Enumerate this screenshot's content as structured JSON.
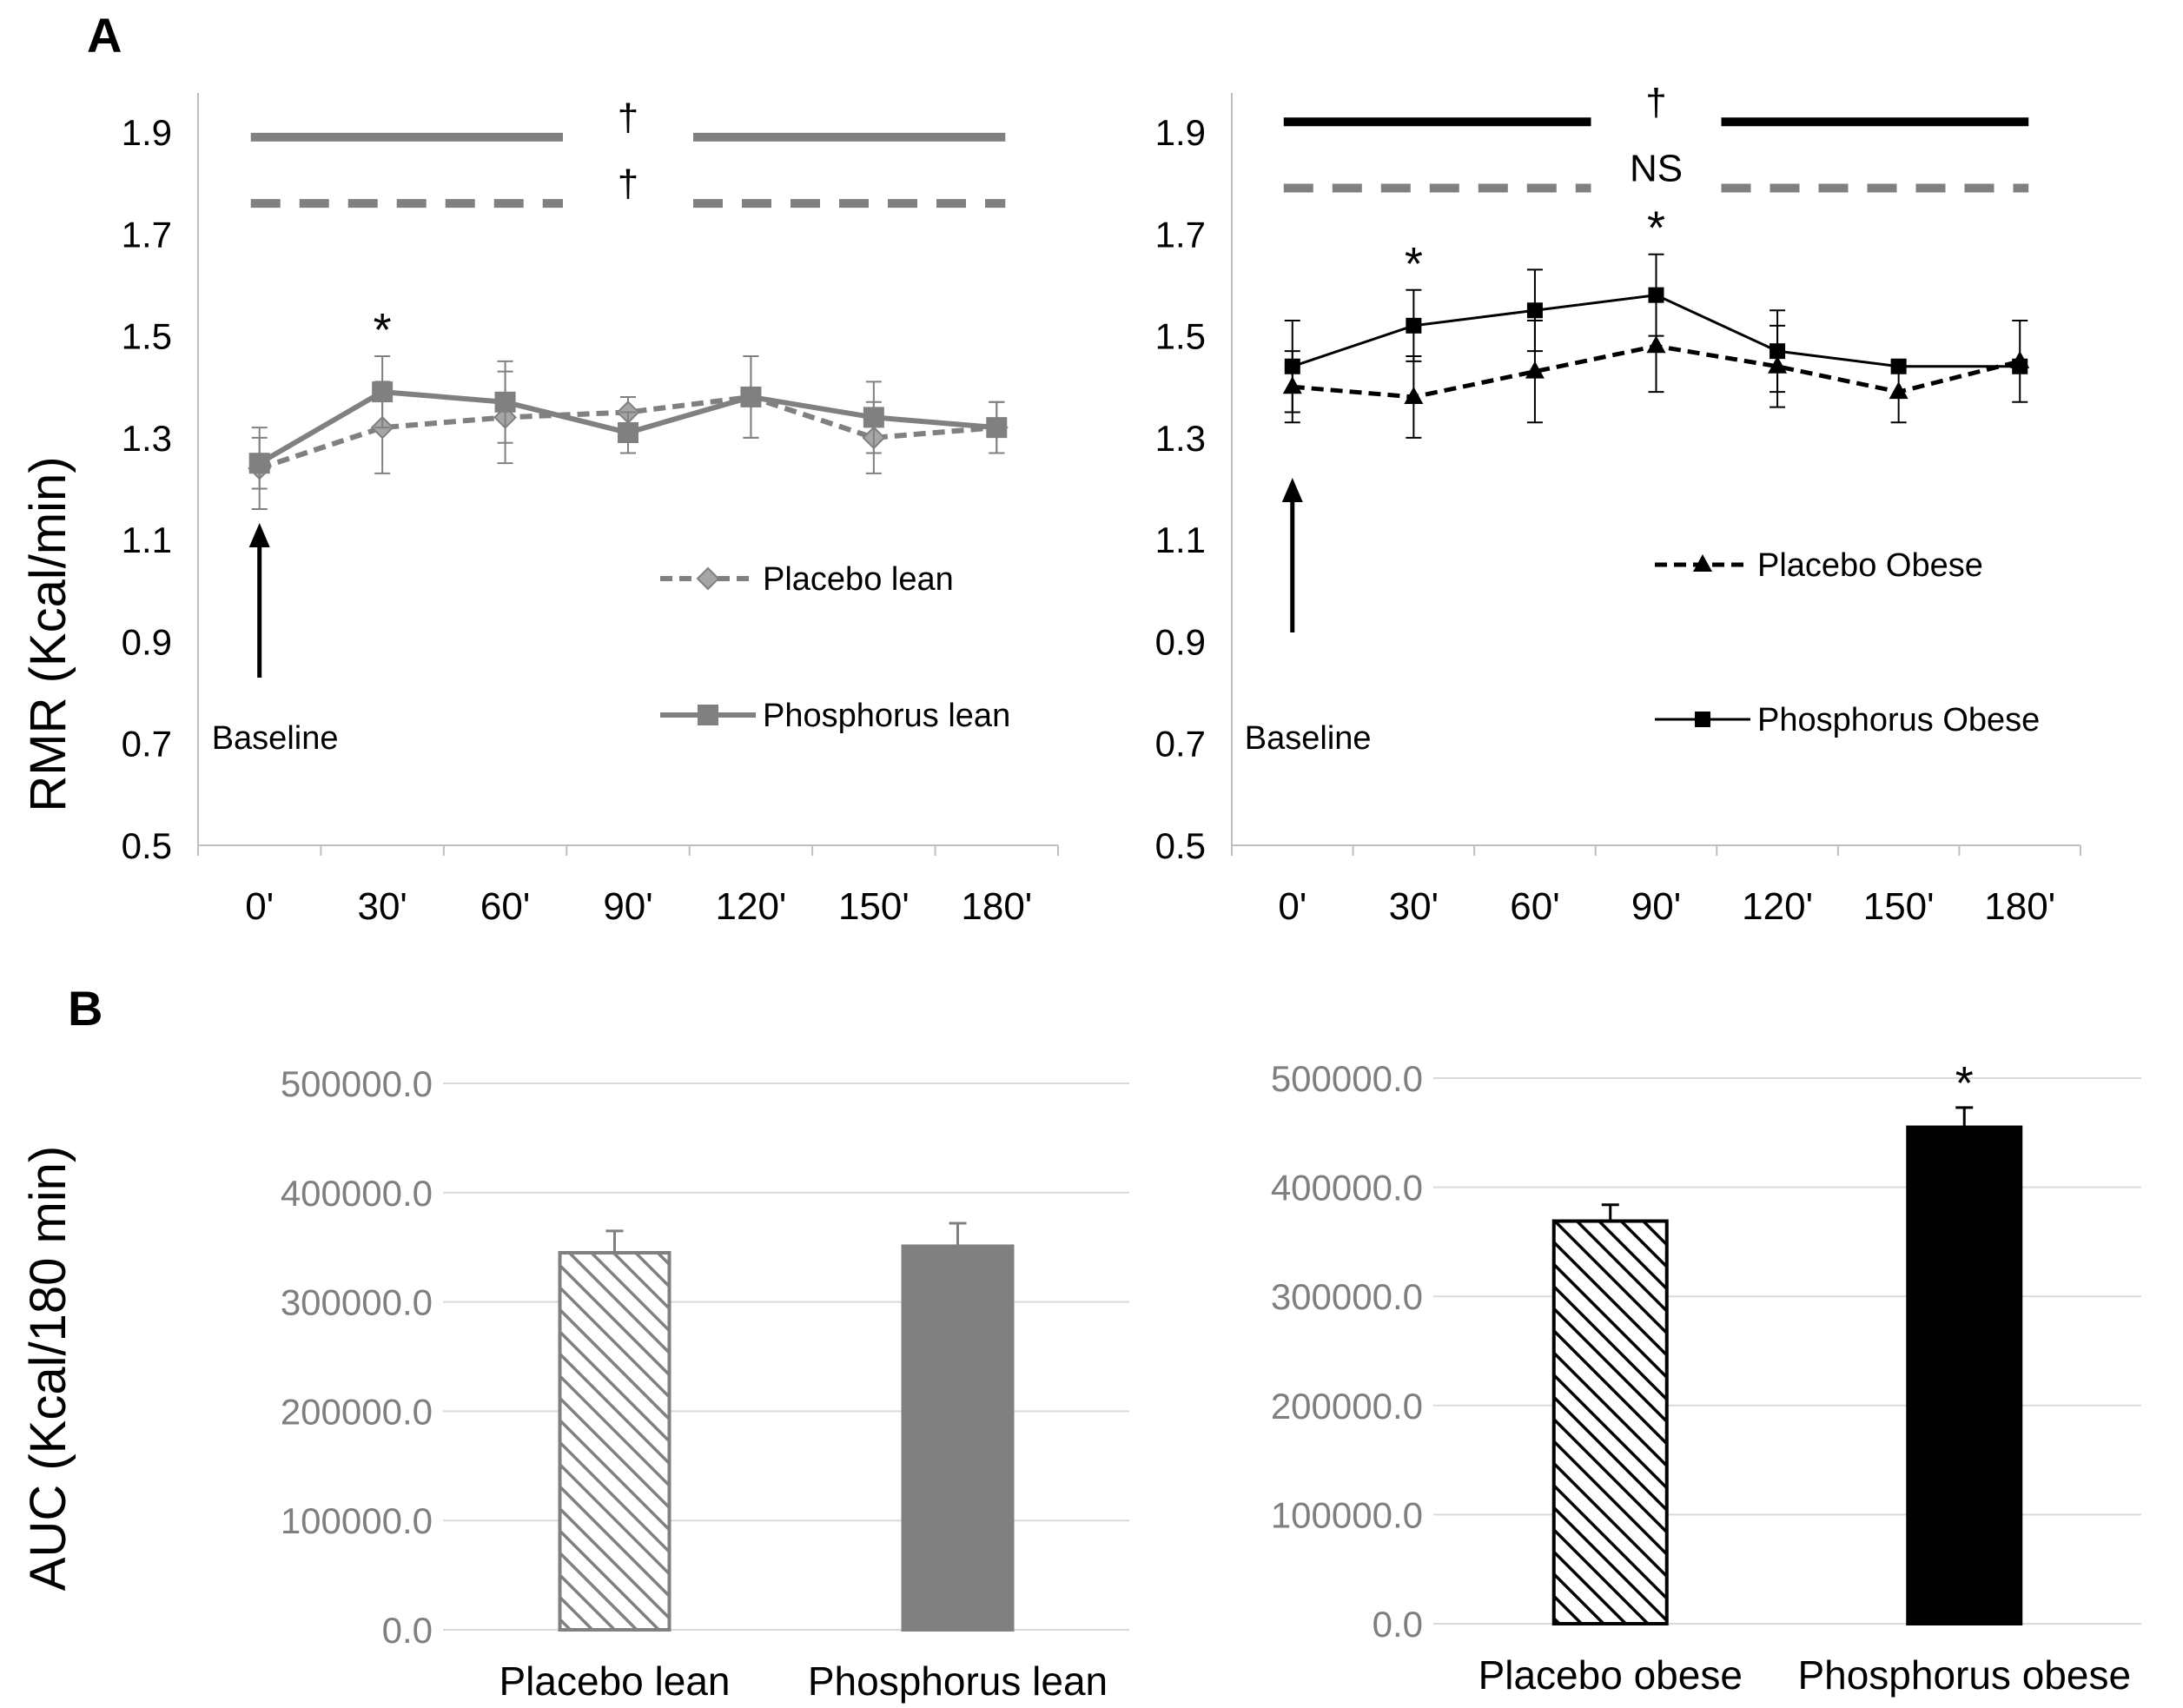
{
  "panels": {
    "a": "A",
    "b": "B"
  },
  "ylabels": {
    "rmr": "RMR (Kcal/min)",
    "auc": "AUC (Kcal/180 min)"
  },
  "colors": {
    "gray": "#808080",
    "black": "#000000",
    "light_grid": "#d9d9d9",
    "axis_text": "#7f7f7f"
  },
  "chart_data": [
    {
      "type": "line",
      "ylim": [
        0.5,
        1.9
      ],
      "yticks": [
        "0.5",
        "0.7",
        "0.9",
        "1.1",
        "1.3",
        "1.5",
        "1.7",
        "1.9"
      ],
      "categories": [
        "0'",
        "30'",
        "60'",
        "90'",
        "120'",
        "150'",
        "180'"
      ],
      "legend_placement": "right",
      "series": [
        {
          "name": "Placebo lean",
          "values": [
            1.24,
            1.32,
            1.34,
            1.35,
            1.38,
            1.3,
            1.32
          ],
          "err": [
            0.08,
            0.09,
            0.09,
            0.03,
            0.08,
            0.07,
            0.05
          ],
          "color": "#808080",
          "dash": "dashed",
          "marker": "diamond"
        },
        {
          "name": "Phosphorus lean",
          "values": [
            1.25,
            1.39,
            1.37,
            1.31,
            1.38,
            1.34,
            1.32
          ],
          "err": [
            0.05,
            0.07,
            0.08,
            0.04,
            0.08,
            0.07,
            0.05
          ],
          "color": "#808080",
          "dash": "solid",
          "marker": "square"
        }
      ],
      "sig_marks": [
        {
          "category": "30'",
          "text": "*"
        }
      ],
      "bracket_lines": [
        {
          "level": 1.89,
          "text": "†",
          "dash": "solid",
          "color": "#808080"
        },
        {
          "level": 1.76,
          "text": "†",
          "dash": "dashed",
          "color": "#808080"
        }
      ],
      "annotation": "Baseline"
    },
    {
      "type": "line",
      "ylim": [
        0.5,
        1.9
      ],
      "yticks": [
        "0.5",
        "0.7",
        "0.9",
        "1.1",
        "1.3",
        "1.5",
        "1.7",
        "1.9"
      ],
      "categories": [
        "0'",
        "30'",
        "60'",
        "90'",
        "120'",
        "150'",
        "180'"
      ],
      "legend_placement": "right",
      "series": [
        {
          "name": "Placebo Obese",
          "values": [
            1.4,
            1.38,
            1.43,
            1.48,
            1.44,
            1.39,
            1.45
          ],
          "err": [
            0.07,
            0.08,
            0.1,
            0.09,
            0.08,
            0.06,
            0.08
          ],
          "color": "#000000",
          "dash": "dashed",
          "marker": "triangle"
        },
        {
          "name": "Phosphorus Obese",
          "values": [
            1.44,
            1.52,
            1.55,
            1.58,
            1.47,
            1.44,
            1.44
          ],
          "err": [
            0.09,
            0.07,
            0.08,
            0.08,
            0.08,
            0.0,
            0.0
          ],
          "color": "#000000",
          "dash": "solid",
          "marker": "square"
        }
      ],
      "sig_marks": [
        {
          "category": "30'",
          "text": "*"
        },
        {
          "category": "90'",
          "text": "*"
        }
      ],
      "bracket_lines": [
        {
          "level": 1.92,
          "text": "†",
          "dash": "solid",
          "color": "#000000"
        },
        {
          "level": 1.79,
          "text": "NS",
          "dash": "dashed",
          "color": "#808080"
        }
      ],
      "annotation": "Baseline"
    },
    {
      "type": "bar",
      "ylim": [
        0,
        500000
      ],
      "yticks": [
        "0.0",
        "100000.0",
        "200000.0",
        "300000.0",
        "400000.0",
        "500000.0"
      ],
      "categories": [
        "Placebo lean",
        "Phosphorus lean"
      ],
      "values": [
        345000,
        351000
      ],
      "err": [
        20000,
        21000
      ],
      "fills": [
        "hatch-gray",
        "solid-gray"
      ],
      "sig_marks": []
    },
    {
      "type": "bar",
      "ylim": [
        0,
        500000
      ],
      "yticks": [
        "0.0",
        "100000.0",
        "200000.0",
        "300000.0",
        "400000.0",
        "500000.0"
      ],
      "categories": [
        "Placebo obese",
        "Phosphorus obese"
      ],
      "values": [
        369000,
        455000
      ],
      "err": [
        15000,
        18000
      ],
      "fills": [
        "hatch-black",
        "solid-black"
      ],
      "sig_marks": [
        {
          "category": "Phosphorus obese",
          "text": "*"
        }
      ]
    }
  ]
}
